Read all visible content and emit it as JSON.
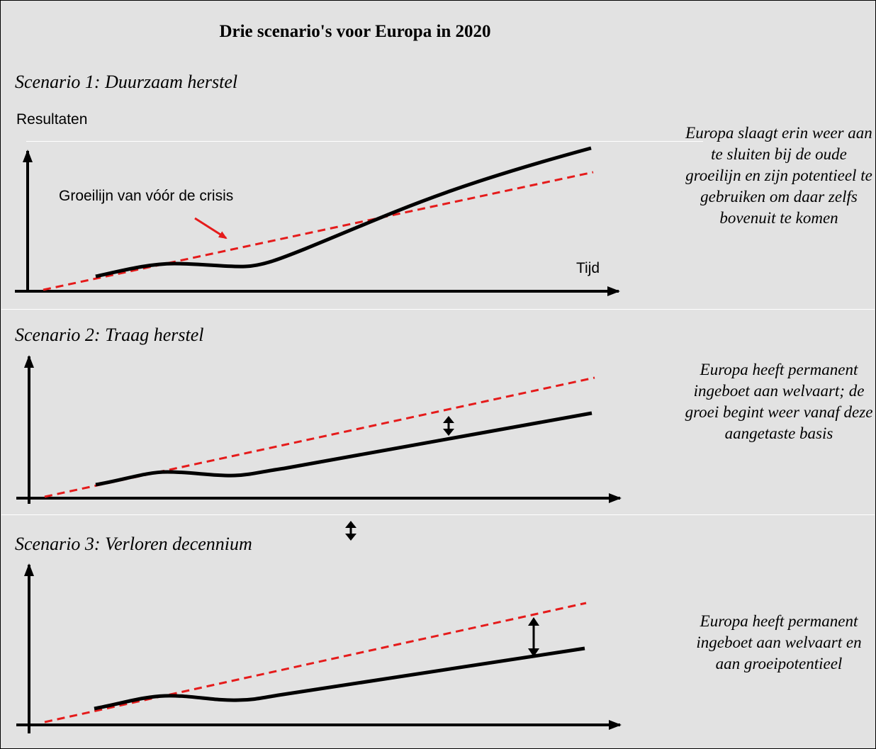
{
  "title": "Drie scenario's voor Europa in 2020",
  "colors": {
    "background": "#e2e2e2",
    "pre_crisis_trend": "#e51b1b",
    "actual_path": "#000000"
  },
  "y_axis_label": "Resultaten",
  "x_axis_label": "Tijd",
  "trend_annotation": "Groeilijn van vóór de crisis",
  "scenarios": [
    {
      "title": "Scenario 1: Duurzaam herstel",
      "description": "Europa slaagt erin weer aan te sluiten bij de oude groeilijn en zijn potentieel te gebruiken om daar zelfs bovenuit te komen"
    },
    {
      "title": "Scenario 2: Traag herstel",
      "description": "Europa heeft permanent ingeboet aan welvaart; de groei begint weer vanaf deze aangetaste basis"
    },
    {
      "title": "Scenario 3: Verloren decennium",
      "description": "Europa heeft permanent ingeboet aan welvaart en aan groeipotentieel"
    }
  ]
}
